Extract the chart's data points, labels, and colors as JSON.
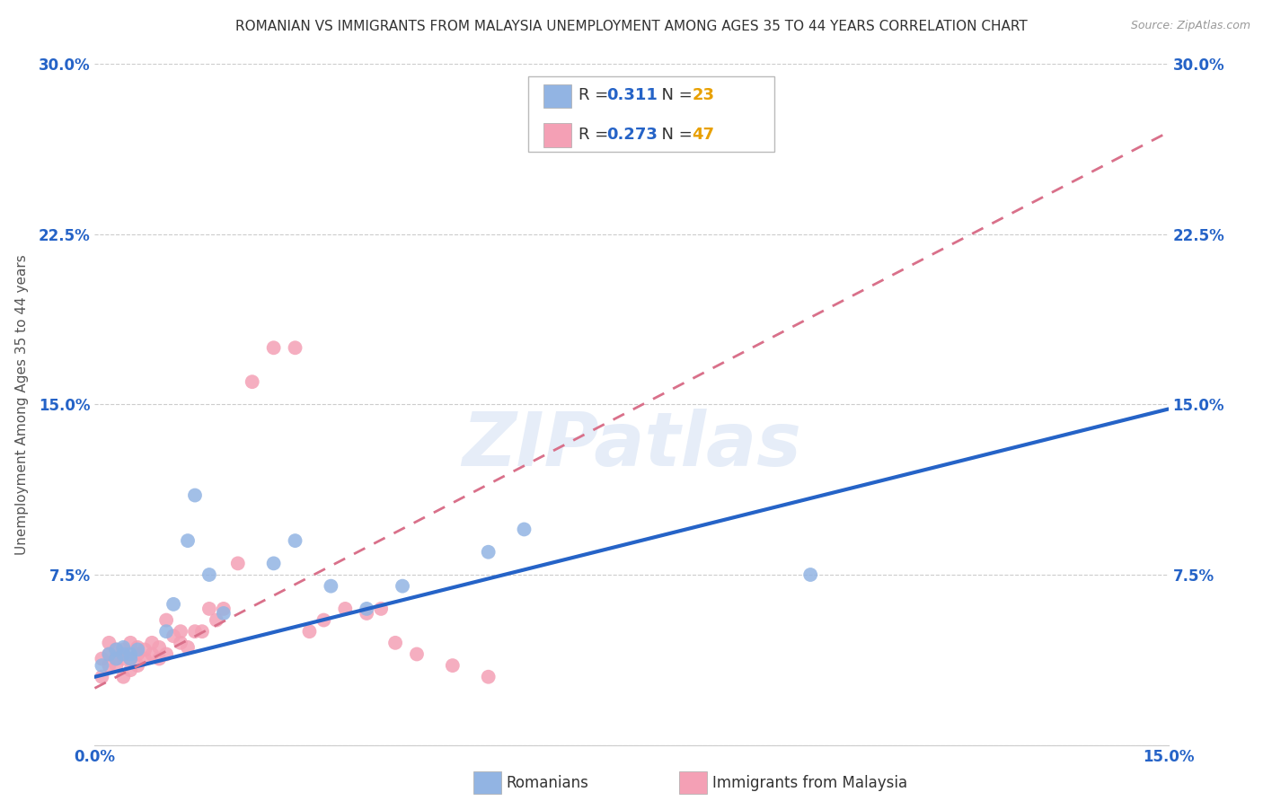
{
  "title": "ROMANIAN VS IMMIGRANTS FROM MALAYSIA UNEMPLOYMENT AMONG AGES 35 TO 44 YEARS CORRELATION CHART",
  "source": "Source: ZipAtlas.com",
  "ylabel": "Unemployment Among Ages 35 to 44 years",
  "xlim": [
    0.0,
    0.15
  ],
  "ylim": [
    0.0,
    0.3
  ],
  "xticks": [
    0.0,
    0.05,
    0.1,
    0.15
  ],
  "xticklabels": [
    "0.0%",
    "",
    "",
    "15.0%"
  ],
  "yticks": [
    0.0,
    0.075,
    0.15,
    0.225,
    0.3
  ],
  "yticklabels": [
    "",
    "7.5%",
    "15.0%",
    "22.5%",
    "30.0%"
  ],
  "romanians_R": "0.311",
  "romanians_N": "23",
  "malaysia_R": "0.273",
  "malaysia_N": "47",
  "romanians_color": "#92b4e3",
  "malaysia_color": "#f4a0b5",
  "romanians_line_color": "#2563c7",
  "malaysia_line_color": "#d9708a",
  "watermark": "ZIPatlas",
  "romanians_x": [
    0.001,
    0.002,
    0.003,
    0.003,
    0.004,
    0.004,
    0.005,
    0.005,
    0.006,
    0.01,
    0.011,
    0.013,
    0.014,
    0.016,
    0.018,
    0.025,
    0.028,
    0.033,
    0.038,
    0.043,
    0.055,
    0.06,
    0.1
  ],
  "romanians_y": [
    0.035,
    0.04,
    0.038,
    0.042,
    0.04,
    0.043,
    0.038,
    0.04,
    0.042,
    0.05,
    0.062,
    0.09,
    0.11,
    0.075,
    0.058,
    0.08,
    0.09,
    0.07,
    0.06,
    0.07,
    0.085,
    0.095,
    0.075
  ],
  "malaysia_x": [
    0.001,
    0.001,
    0.002,
    0.002,
    0.002,
    0.003,
    0.003,
    0.003,
    0.004,
    0.004,
    0.004,
    0.005,
    0.005,
    0.005,
    0.006,
    0.006,
    0.006,
    0.007,
    0.007,
    0.008,
    0.008,
    0.009,
    0.009,
    0.01,
    0.01,
    0.011,
    0.012,
    0.012,
    0.013,
    0.014,
    0.015,
    0.016,
    0.017,
    0.018,
    0.02,
    0.022,
    0.025,
    0.028,
    0.03,
    0.032,
    0.035,
    0.038,
    0.04,
    0.042,
    0.045,
    0.05,
    0.055
  ],
  "malaysia_y": [
    0.03,
    0.038,
    0.035,
    0.04,
    0.045,
    0.035,
    0.038,
    0.042,
    0.03,
    0.038,
    0.042,
    0.033,
    0.038,
    0.045,
    0.035,
    0.04,
    0.043,
    0.038,
    0.042,
    0.04,
    0.045,
    0.038,
    0.043,
    0.04,
    0.055,
    0.048,
    0.045,
    0.05,
    0.043,
    0.05,
    0.05,
    0.06,
    0.055,
    0.06,
    0.08,
    0.16,
    0.175,
    0.175,
    0.05,
    0.055,
    0.06,
    0.058,
    0.06,
    0.045,
    0.04,
    0.035,
    0.03
  ],
  "title_fontsize": 11,
  "axis_label_fontsize": 11,
  "tick_fontsize": 12,
  "legend_fontsize": 13,
  "blue_line_y0": 0.03,
  "blue_line_y1": 0.148,
  "pink_line_y0": 0.025,
  "pink_line_y1": 0.27
}
